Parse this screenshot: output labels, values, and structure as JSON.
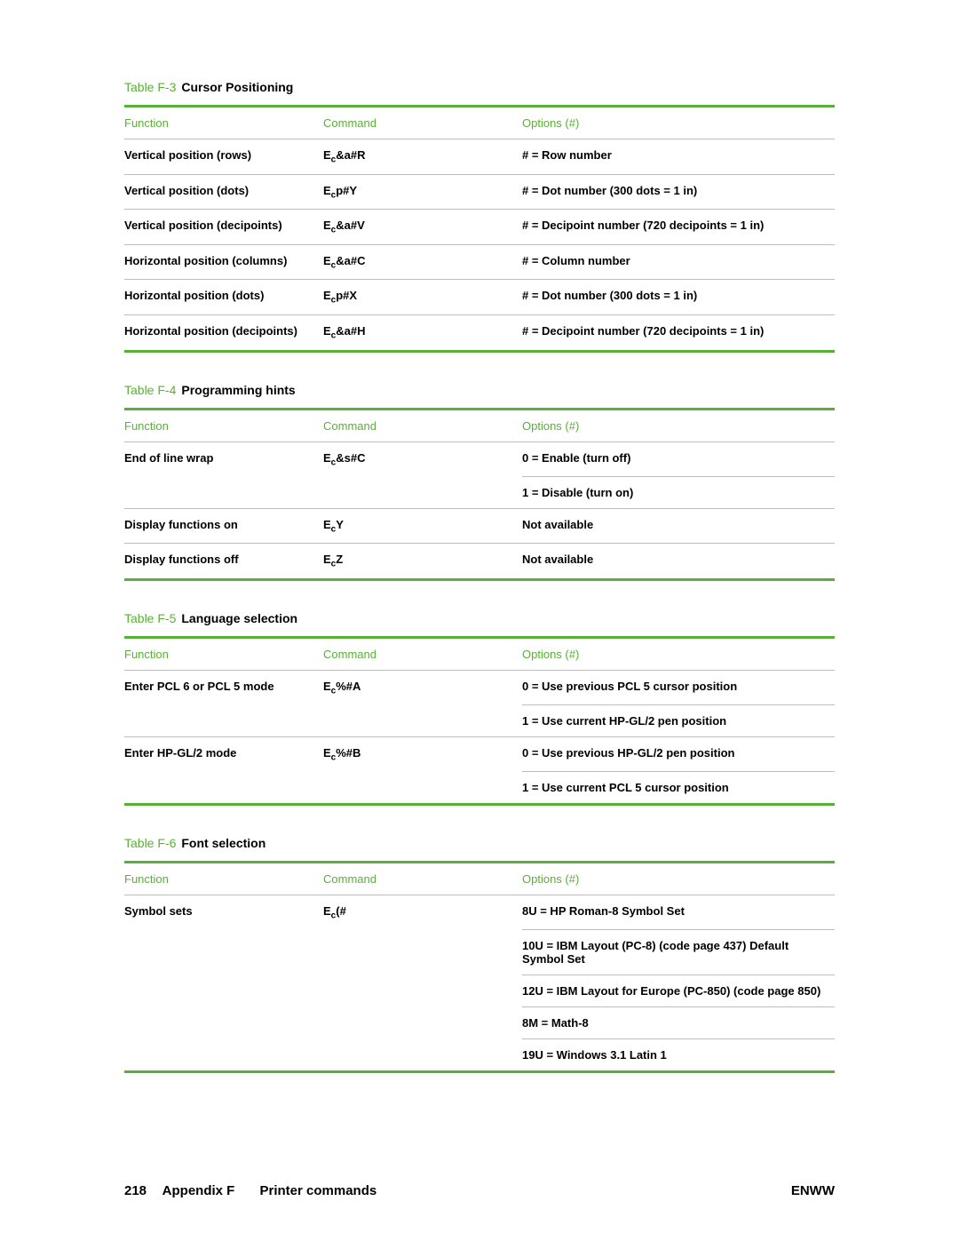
{
  "colors": {
    "accent": "#59b036",
    "divider": "#bdbdbd",
    "text": "#000000",
    "bg": "#ffffff"
  },
  "column_headers": {
    "function": "Function",
    "command": "Command",
    "options": "Options (#)"
  },
  "column_widths": {
    "function": "28%",
    "command": "28%",
    "options": "44%"
  },
  "tables": [
    {
      "prefix": "Table F-3",
      "title": "Cursor Positioning",
      "rows": [
        {
          "function": "Vertical position (rows)",
          "cmd_pre": "E",
          "cmd_sub": "c",
          "cmd_post": "&a#R",
          "options": [
            "# = Row number"
          ]
        },
        {
          "function": "Vertical position (dots)",
          "cmd_pre": "E",
          "cmd_sub": "c",
          "cmd_post": "p#Y",
          "options": [
            "# = Dot number (300 dots = 1 in)"
          ]
        },
        {
          "function": "Vertical position (decipoints)",
          "cmd_pre": "E",
          "cmd_sub": "c",
          "cmd_post": "&a#V",
          "options": [
            "# = Decipoint number (720 decipoints = 1 in)"
          ]
        },
        {
          "function": "Horizontal position (columns)",
          "cmd_pre": "E",
          "cmd_sub": "c",
          "cmd_post": "&a#C",
          "options": [
            "# = Column number"
          ]
        },
        {
          "function": "Horizontal position (dots)",
          "cmd_pre": "E",
          "cmd_sub": "c",
          "cmd_post": "p#X",
          "options": [
            "# = Dot number (300 dots = 1 in)"
          ]
        },
        {
          "function": "Horizontal position (decipoints)",
          "cmd_pre": "E",
          "cmd_sub": "c",
          "cmd_post": "&a#H",
          "options": [
            "# = Decipoint number (720 decipoints = 1 in)"
          ]
        }
      ]
    },
    {
      "prefix": "Table F-4",
      "title": "Programming hints",
      "rows": [
        {
          "function": "End of line wrap",
          "cmd_pre": "E",
          "cmd_sub": "c",
          "cmd_post": "&s#C",
          "options": [
            "0 = Enable (turn off)",
            "1 = Disable (turn on)"
          ]
        },
        {
          "function": "Display functions on",
          "cmd_pre": "E",
          "cmd_sub": "c",
          "cmd_post": "Y",
          "options": [
            "Not available"
          ]
        },
        {
          "function": "Display functions off",
          "cmd_pre": "E",
          "cmd_sub": "c",
          "cmd_post": "Z",
          "options": [
            "Not available"
          ]
        }
      ]
    },
    {
      "prefix": "Table F-5",
      "title": "Language selection",
      "rows": [
        {
          "function": "Enter PCL 6 or PCL 5 mode",
          "cmd_pre": "E",
          "cmd_sub": "c",
          "cmd_post": "%#A",
          "options": [
            "0 = Use previous PCL 5 cursor position",
            "1 = Use current HP-GL/2 pen position"
          ]
        },
        {
          "function": "Enter HP-GL/2 mode",
          "cmd_pre": "E",
          "cmd_sub": "c",
          "cmd_post": "%#B",
          "options": [
            "0 = Use previous HP-GL/2 pen position",
            "1 = Use current PCL 5 cursor position"
          ]
        }
      ]
    },
    {
      "prefix": "Table F-6",
      "title": "Font selection",
      "rows": [
        {
          "function": "Symbol sets",
          "cmd_pre": "E",
          "cmd_sub": "c",
          "cmd_post": "(#",
          "options": [
            "8U = HP Roman-8 Symbol Set",
            "10U = IBM Layout (PC-8) (code page 437) Default Symbol Set",
            "12U = IBM Layout for Europe (PC-850) (code page 850)",
            "8M = Math-8",
            "19U = Windows 3.1 Latin 1"
          ]
        }
      ]
    }
  ],
  "footer": {
    "page": "218",
    "appendix": "Appendix F",
    "section": "Printer commands",
    "right": "ENWW"
  }
}
